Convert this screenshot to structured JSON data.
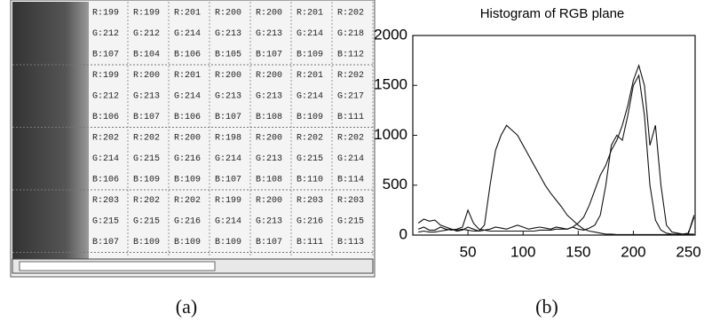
{
  "pixel_table": {
    "rows": [
      [
        "R:199",
        "R:199",
        "R:201",
        "R:200",
        "R:200",
        "R:201",
        "R:202"
      ],
      [
        "G:212",
        "G:212",
        "G:214",
        "G:213",
        "G:213",
        "G:214",
        "G:218"
      ],
      [
        "B:107",
        "B:104",
        "B:106",
        "B:105",
        "B:107",
        "B:109",
        "B:112"
      ],
      [
        "R:199",
        "R:200",
        "R:201",
        "R:200",
        "R:200",
        "R:201",
        "R:202"
      ],
      [
        "G:212",
        "G:213",
        "G:214",
        "G:213",
        "G:213",
        "G:214",
        "G:217"
      ],
      [
        "B:106",
        "B:107",
        "B:106",
        "B:107",
        "B:108",
        "B:109",
        "B:111"
      ],
      [
        "R:202",
        "R:202",
        "R:200",
        "R:198",
        "R:200",
        "R:202",
        "R:202"
      ],
      [
        "G:214",
        "G:215",
        "G:216",
        "G:214",
        "G:213",
        "G:215",
        "G:214"
      ],
      [
        "B:106",
        "B:109",
        "B:109",
        "B:107",
        "B:108",
        "B:110",
        "B:114"
      ],
      [
        "R:203",
        "R:202",
        "R:202",
        "R:199",
        "R:200",
        "R:203",
        "R:203"
      ],
      [
        "G:215",
        "G:215",
        "G:216",
        "G:214",
        "G:213",
        "G:216",
        "G:215"
      ],
      [
        "B:107",
        "B:109",
        "B:109",
        "B:109",
        "B:107",
        "B:111",
        "B:113"
      ]
    ]
  },
  "captions": [
    "(a)",
    "(b)"
  ],
  "chart_data": {
    "type": "line",
    "title": "Histogram of RGB plane",
    "x": [
      5,
      10,
      15,
      20,
      25,
      30,
      35,
      40,
      45,
      50,
      55,
      60,
      65,
      70,
      75,
      80,
      85,
      90,
      95,
      100,
      105,
      110,
      115,
      120,
      125,
      130,
      135,
      140,
      145,
      150,
      155,
      160,
      165,
      170,
      175,
      180,
      185,
      190,
      195,
      200,
      205,
      210,
      215,
      220,
      225,
      230,
      235,
      240,
      245,
      250,
      255
    ],
    "series": [
      {
        "color": "#111111",
        "values": [
          120,
          160,
          140,
          150,
          100,
          80,
          60,
          50,
          60,
          50,
          40,
          40,
          100,
          500,
          850,
          1000,
          1100,
          1050,
          1000,
          900,
          800,
          700,
          600,
          500,
          420,
          350,
          280,
          200,
          150,
          100,
          60,
          40,
          30,
          20,
          10,
          10,
          5,
          5,
          5,
          5,
          5,
          5,
          5,
          5,
          5,
          5,
          5,
          5,
          5,
          20,
          180
        ]
      },
      {
        "color": "#111111",
        "values": [
          60,
          80,
          50,
          50,
          80,
          60,
          50,
          60,
          80,
          250,
          120,
          60,
          50,
          40,
          40,
          40,
          40,
          40,
          40,
          40,
          40,
          40,
          50,
          50,
          50,
          60,
          60,
          60,
          80,
          120,
          180,
          300,
          450,
          600,
          700,
          850,
          950,
          1100,
          1300,
          1550,
          1700,
          1500,
          900,
          1100,
          500,
          100,
          30,
          20,
          10,
          20,
          200
        ]
      },
      {
        "color": "#111111",
        "values": [
          30,
          40,
          30,
          30,
          40,
          50,
          60,
          40,
          50,
          80,
          60,
          40,
          50,
          60,
          80,
          70,
          60,
          80,
          100,
          80,
          60,
          70,
          80,
          70,
          60,
          80,
          70,
          60,
          80,
          60,
          50,
          70,
          100,
          200,
          500,
          900,
          1000,
          950,
          1200,
          1500,
          1600,
          1200,
          500,
          150,
          50,
          20,
          10,
          10,
          10,
          10,
          10
        ]
      }
    ],
    "xlim": [
      0,
      256
    ],
    "xticks": [
      50,
      100,
      150,
      200,
      250
    ],
    "ylim": [
      0,
      2000
    ],
    "yticks": [
      0,
      500,
      1000,
      1500,
      2000
    ]
  }
}
